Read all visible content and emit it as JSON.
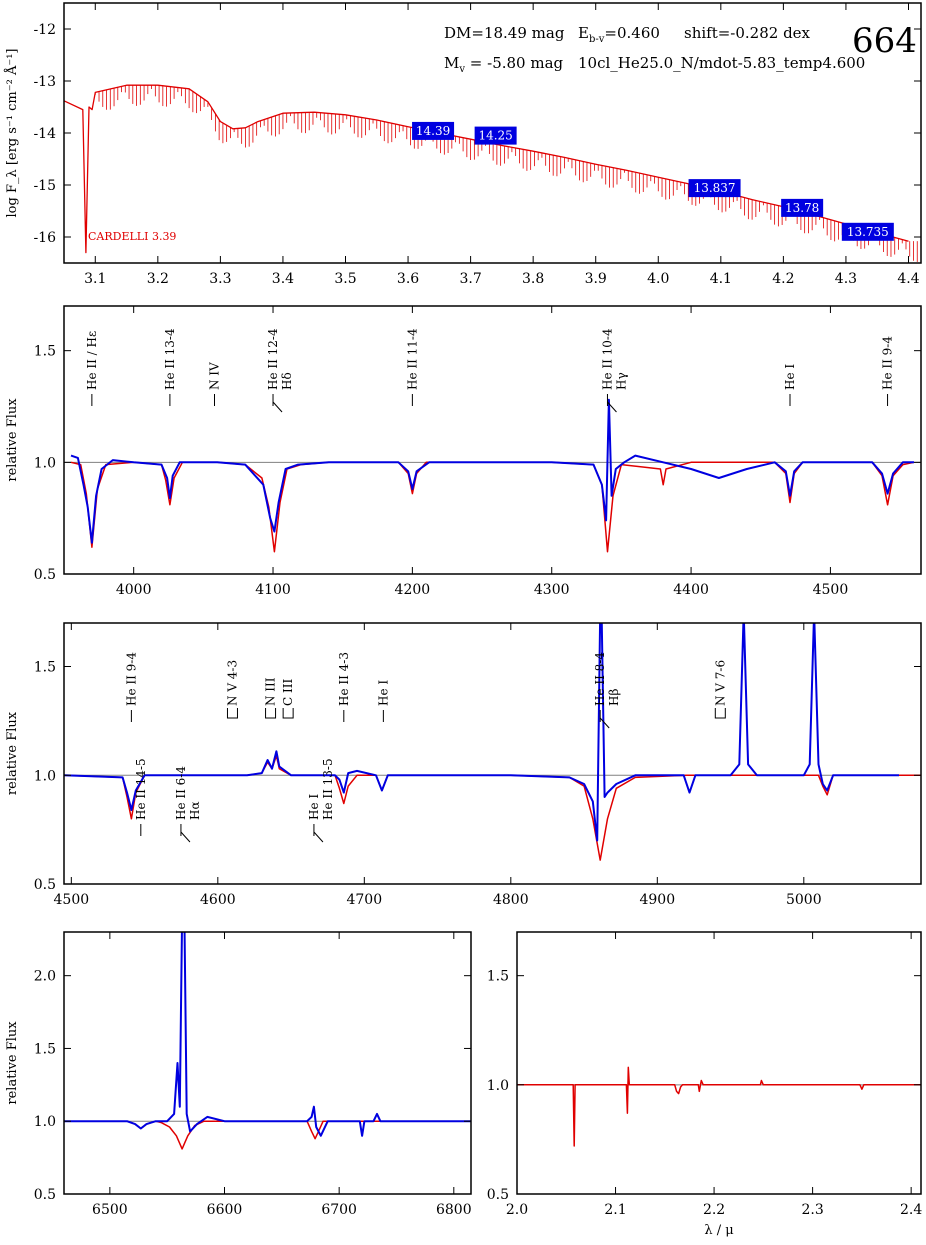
{
  "header": {
    "id_number": "664",
    "dm": "DM=18.49 mag",
    "ebv_prefix": "E",
    "ebv_sub": "b-v",
    "ebv_value": "=0.460",
    "shift": "shift=-0.282 dex",
    "mv_prefix": "M",
    "mv_sub": "v",
    "mv_value": " =  -5.80 mag",
    "model": "10cl_He25.0_N/mdot-5.83_temp4.600",
    "reddening_law": "CARDELLI 3.39"
  },
  "colors": {
    "model": "#e00000",
    "observed": "#0000e0",
    "phot_box": "#0000e0",
    "reference": "#808080"
  },
  "chart_data": [
    {
      "type": "line",
      "panel": "SED",
      "ylabel": "log F_λ [erg s⁻¹ cm⁻² Å⁻¹]",
      "xlabel": "",
      "xlim": [
        3.05,
        4.42
      ],
      "ylim": [
        -16.5,
        -11.5
      ],
      "xticks": [
        3.1,
        3.2,
        3.3,
        3.4,
        3.5,
        3.6,
        3.7,
        3.8,
        3.9,
        4.0,
        4.1,
        4.2,
        4.3,
        4.4
      ],
      "xticklabels": [
        "3.1",
        "3.2",
        "3.3",
        "3.4",
        "3.5",
        "3.6",
        "3.7",
        "3.8",
        "3.9",
        "4.0",
        "4.1",
        "4.2",
        "4.3",
        "4.4"
      ],
      "yticks": [
        -12,
        -13,
        -14,
        -15,
        -16
      ],
      "yticklabels": [
        "-12",
        "-13",
        "-14",
        "-15",
        "-16"
      ],
      "series": [
        {
          "x": [
            3.05,
            3.08,
            3.085,
            3.09,
            3.095,
            3.1,
            3.15,
            3.2,
            3.25,
            3.28,
            3.3,
            3.32,
            3.34,
            3.36,
            3.4,
            3.45,
            3.5,
            3.55,
            3.6,
            3.65,
            3.7,
            3.75,
            3.8,
            3.85,
            3.9,
            3.95,
            4.0,
            4.05,
            4.1,
            4.15,
            4.2,
            4.25,
            4.3,
            4.35,
            4.4
          ],
          "y": [
            -13.38,
            -13.55,
            -16.3,
            -13.5,
            -13.55,
            -13.22,
            -13.08,
            -13.08,
            -13.15,
            -13.4,
            -13.78,
            -13.92,
            -13.9,
            -13.78,
            -13.62,
            -13.6,
            -13.65,
            -13.75,
            -13.88,
            -14.0,
            -14.12,
            -14.24,
            -14.35,
            -14.47,
            -14.6,
            -14.72,
            -14.85,
            -14.98,
            -15.12,
            -15.28,
            -15.42,
            -15.58,
            -15.75,
            -15.92,
            -16.08
          ]
        }
      ],
      "photometry": [
        {
          "x": 3.64,
          "y": -13.96,
          "label": "14.39"
        },
        {
          "x": 3.74,
          "y": -14.05,
          "label": "14.25"
        },
        {
          "x": 4.09,
          "y": -15.06,
          "label": "13.837"
        },
        {
          "x": 4.23,
          "y": -15.44,
          "label": "13.78"
        },
        {
          "x": 4.335,
          "y": -15.9,
          "label": "13.735"
        }
      ]
    },
    {
      "type": "line",
      "panel": "blue",
      "ylabel": "relative Flux",
      "xlabel": "",
      "xlim": [
        3950,
        4565
      ],
      "ylim": [
        0.5,
        1.7
      ],
      "xticks": [
        4000,
        4100,
        4200,
        4300,
        4400,
        4500
      ],
      "xticklabels": [
        "4000",
        "4100",
        "4200",
        "4300",
        "4400",
        "4500"
      ],
      "yticks": [
        0.5,
        1.0,
        1.5
      ],
      "yticklabels": [
        "0.5",
        "1.0",
        "1.5"
      ],
      "lines": [
        {
          "x": 3970,
          "label": "He II / Hε"
        },
        {
          "x": 4026,
          "label": "He II 13-4"
        },
        {
          "x": 4058,
          "label": "N IV"
        },
        {
          "x": 4100,
          "label": "He II 12-4",
          "label2": "Hδ"
        },
        {
          "x": 4200,
          "label": "He II 11-4"
        },
        {
          "x": 4340,
          "label": "He II 10-4",
          "label2": "Hγ"
        },
        {
          "x": 4471,
          "label": "He I"
        },
        {
          "x": 4541,
          "label": "He II 9-4"
        }
      ],
      "series": [
        {
          "name": "model",
          "x": [
            3955,
            3962,
            3966,
            3970,
            3974,
            3980,
            4000,
            4020,
            4023,
            4026,
            4029,
            4035,
            4060,
            4080,
            4092,
            4097,
            4101,
            4105,
            4110,
            4120,
            4140,
            4190,
            4197,
            4200,
            4203,
            4210,
            4300,
            4330,
            4336,
            4340,
            4344,
            4350,
            4378,
            4380,
            4382,
            4400,
            4460,
            4468,
            4471,
            4474,
            4480,
            4530,
            4537,
            4541,
            4545,
            4552,
            4560
          ],
          "y": [
            1.0,
            0.99,
            0.86,
            0.62,
            0.88,
            0.99,
            1.0,
            0.99,
            0.92,
            0.81,
            0.93,
            1.0,
            1.0,
            0.99,
            0.93,
            0.8,
            0.6,
            0.82,
            0.97,
            0.99,
            1.0,
            1.0,
            0.95,
            0.86,
            0.95,
            1.0,
            1.0,
            0.99,
            0.9,
            0.6,
            0.85,
            0.99,
            0.97,
            0.9,
            0.97,
            1.0,
            1.0,
            0.95,
            0.82,
            0.95,
            1.0,
            1.0,
            0.94,
            0.81,
            0.94,
            0.99,
            1.0
          ]
        },
        {
          "name": "observed",
          "x": [
            3955,
            3960,
            3964,
            3967,
            3970,
            3973,
            3977,
            3985,
            4000,
            4020,
            4024,
            4026,
            4028,
            4033,
            4060,
            4080,
            4093,
            4098,
            4101,
            4104,
            4109,
            4118,
            4140,
            4190,
            4197,
            4200,
            4203,
            4212,
            4300,
            4330,
            4336,
            4339,
            4341,
            4343,
            4346,
            4352,
            4360,
            4380,
            4400,
            4420,
            4440,
            4460,
            4468,
            4471,
            4474,
            4480,
            4530,
            4537,
            4541,
            4545,
            4552,
            4560
          ],
          "y": [
            1.03,
            1.02,
            0.9,
            0.8,
            0.64,
            0.85,
            0.97,
            1.01,
            1.0,
            0.99,
            0.93,
            0.84,
            0.94,
            1.0,
            1.0,
            0.99,
            0.9,
            0.75,
            0.69,
            0.82,
            0.97,
            0.99,
            1.0,
            1.0,
            0.96,
            0.88,
            0.96,
            1.0,
            1.0,
            0.99,
            0.9,
            0.74,
            1.28,
            0.85,
            0.97,
            1.0,
            1.03,
            1.0,
            0.97,
            0.93,
            0.97,
            1.0,
            0.96,
            0.85,
            0.96,
            1.0,
            1.0,
            0.95,
            0.86,
            0.95,
            1.0,
            1.0
          ]
        }
      ]
    },
    {
      "type": "line",
      "panel": "green",
      "ylabel": "relative Flux",
      "xlabel": "",
      "xlim": [
        4495,
        5080
      ],
      "ylim": [
        0.5,
        1.7
      ],
      "xticks": [
        4500,
        4600,
        4700,
        4800,
        4900,
        5000
      ],
      "xticklabels": [
        "4500",
        "4600",
        "4700",
        "4800",
        "4900",
        "5000"
      ],
      "yticks": [
        0.5,
        1.0,
        1.5
      ],
      "yticklabels": [
        "0.5",
        "1.0",
        "1.5"
      ],
      "lines": [
        {
          "x": 4541,
          "label": "He II 9-4"
        },
        {
          "x": 4610,
          "label": "N V 4-3",
          "bracket": true
        },
        {
          "x": 4636,
          "label": "N III",
          "bracket": true
        },
        {
          "x": 4648,
          "label": "C III",
          "bracket": true
        },
        {
          "x": 4686,
          "label": "He II 4-3"
        },
        {
          "x": 4713,
          "label": "He I"
        },
        {
          "x": 4861,
          "label": "He II 8-4",
          "label2": "Hβ"
        },
        {
          "x": 4943,
          "label": "N V 7-6",
          "bracket": true
        }
      ],
      "series": [
        {
          "name": "model",
          "x": [
            4495,
            4535,
            4538,
            4541,
            4544,
            4550,
            4620,
            4630,
            4634,
            4637,
            4640,
            4642,
            4650,
            4680,
            4683,
            4686,
            4689,
            4695,
            4708,
            4712,
            4716,
            4800,
            4840,
            4850,
            4856,
            4861,
            4866,
            4872,
            4885,
            4920,
            5010,
            5013,
            5016,
            5020,
            5080
          ],
          "y": [
            1.0,
            0.99,
            0.9,
            0.8,
            0.92,
            1.0,
            1.0,
            1.01,
            1.06,
            1.03,
            1.09,
            1.03,
            1.0,
            1.0,
            0.94,
            0.87,
            0.95,
            1.0,
            1.0,
            0.93,
            1.0,
            1.0,
            0.99,
            0.95,
            0.8,
            0.61,
            0.8,
            0.94,
            0.99,
            1.0,
            1.0,
            0.95,
            0.91,
            1.0,
            1.0
          ]
        },
        {
          "name": "observed",
          "x": [
            4495,
            4535,
            4538,
            4541,
            4544,
            4550,
            4620,
            4630,
            4634,
            4637,
            4640,
            4642,
            4650,
            4680,
            4683,
            4686,
            4689,
            4695,
            4708,
            4712,
            4716,
            4800,
            4840,
            4850,
            4856,
            4859,
            4861,
            4862,
            4864,
            4866,
            4872,
            4885,
            4918,
            4922,
            4926,
            4950,
            4956,
            4959,
            4962,
            4968,
            5000,
            5004,
            5007,
            5010,
            5013,
            5016,
            5020,
            5065
          ],
          "y": [
            1.0,
            0.99,
            0.92,
            0.84,
            0.93,
            1.0,
            1.0,
            1.01,
            1.07,
            1.03,
            1.11,
            1.04,
            1.0,
            1.0,
            0.98,
            0.92,
            1.01,
            1.02,
            1.0,
            0.93,
            1.0,
            1.0,
            0.99,
            0.96,
            0.88,
            0.7,
            1.75,
            1.75,
            0.9,
            0.92,
            0.96,
            1.0,
            1.0,
            0.92,
            1.0,
            1.0,
            1.05,
            1.75,
            1.05,
            1.0,
            1.0,
            1.05,
            1.75,
            1.05,
            0.96,
            0.93,
            1.0,
            1.0
          ]
        }
      ]
    },
    {
      "type": "line",
      "panel": "red",
      "ylabel": "relative Flux",
      "xlabel": "",
      "xlim": [
        6460,
        6815
      ],
      "ylim": [
        0.5,
        2.3
      ],
      "xticks": [
        6500,
        6600,
        6700,
        6800
      ],
      "xticklabels": [
        "6500",
        "6600",
        "6700",
        "6800"
      ],
      "yticks": [
        0.5,
        1.0,
        1.5,
        2.0
      ],
      "yticklabels": [
        "0.5",
        "1.0",
        "1.5",
        "2.0"
      ],
      "lines": [
        {
          "x": 6527,
          "label": "He II 14-5"
        },
        {
          "x": 6562,
          "label": "He II 6-4",
          "label2": "Hα"
        },
        {
          "x": 6678,
          "label": "He I",
          "label2": "He II 13-5"
        }
      ],
      "series": [
        {
          "name": "model",
          "x": [
            6460,
            6515,
            6522,
            6527,
            6532,
            6540,
            6545,
            6552,
            6558,
            6563,
            6568,
            6574,
            6582,
            6600,
            6672,
            6676,
            6679,
            6682,
            6686,
            6815
          ],
          "y": [
            1.0,
            1.0,
            0.98,
            0.95,
            0.98,
            1.0,
            0.99,
            0.96,
            0.9,
            0.81,
            0.9,
            0.97,
            1.0,
            1.0,
            1.0,
            0.93,
            0.88,
            0.93,
            1.0,
            1.0
          ]
        },
        {
          "name": "observed",
          "x": [
            6460,
            6515,
            6522,
            6527,
            6532,
            6540,
            6550,
            6556,
            6559,
            6561,
            6563,
            6565,
            6567,
            6570,
            6576,
            6585,
            6600,
            6672,
            6676,
            6678,
            6680,
            6684,
            6690,
            6718,
            6720,
            6722,
            6730,
            6733,
            6736,
            6815
          ],
          "y": [
            1.0,
            1.0,
            0.98,
            0.95,
            0.98,
            1.0,
            1.0,
            1.05,
            1.4,
            1.1,
            2.4,
            2.4,
            1.05,
            0.93,
            0.98,
            1.03,
            1.0,
            1.0,
            1.03,
            1.1,
            0.96,
            0.9,
            1.0,
            1.0,
            0.9,
            1.0,
            1.0,
            1.05,
            1.0,
            1.0
          ]
        }
      ]
    },
    {
      "type": "line",
      "panel": "IR",
      "ylabel": "",
      "xlabel": "λ / μ",
      "xlim": [
        2.0,
        2.41
      ],
      "ylim": [
        0.5,
        1.7
      ],
      "xticks": [
        2.0,
        2.1,
        2.2,
        2.3,
        2.4
      ],
      "xticklabels": [
        "2.0",
        "2.1",
        "2.2",
        "2.3",
        "2.4"
      ],
      "yticks": [
        0.5,
        1.0,
        1.5
      ],
      "yticklabels": [
        "0.5",
        "1.0",
        "1.5"
      ],
      "series": [
        {
          "name": "model",
          "x": [
            2.0,
            2.057,
            2.058,
            2.059,
            2.111,
            2.112,
            2.113,
            2.114,
            2.115,
            2.16,
            2.162,
            2.164,
            2.166,
            2.168,
            2.184,
            2.185,
            2.187,
            2.189,
            2.247,
            2.248,
            2.25,
            2.348,
            2.35,
            2.352,
            2.41
          ],
          "y": [
            1.0,
            1.0,
            0.72,
            1.0,
            1.0,
            0.87,
            1.08,
            1.0,
            1.0,
            1.0,
            0.97,
            0.96,
            0.99,
            1.0,
            1.0,
            0.97,
            1.02,
            1.0,
            1.0,
            1.02,
            1.0,
            1.0,
            0.98,
            1.0,
            1.0
          ]
        }
      ]
    }
  ]
}
